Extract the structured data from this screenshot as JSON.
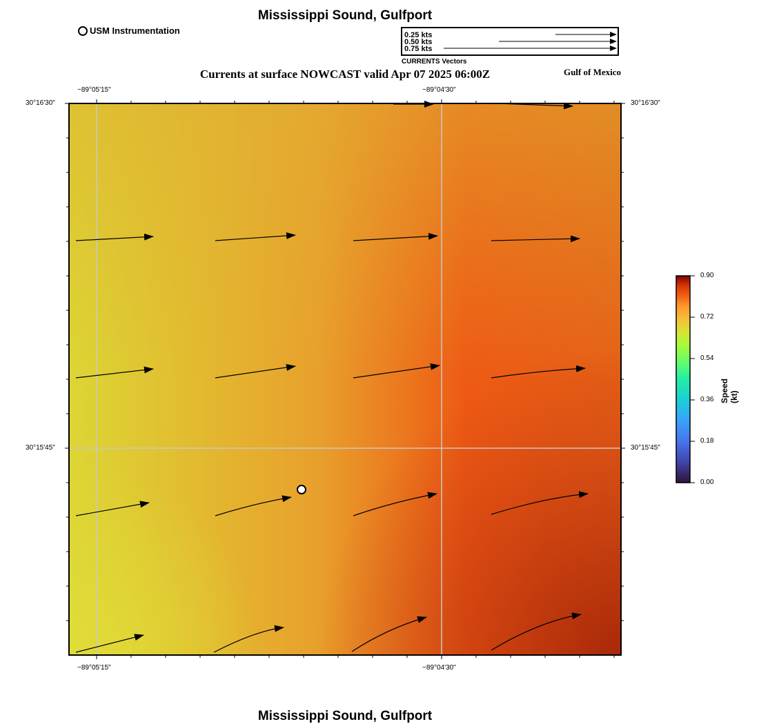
{
  "header": {
    "title": "Mississippi Sound, Gulfport",
    "subtitle": "Currents at surface NOWCAST valid Apr 07 2025 06:00Z",
    "region": "Gulf of Mexico"
  },
  "footer": {
    "title": "Mississippi Sound, Gulfport"
  },
  "legend": {
    "station_label": "USM Instrumentation",
    "vectors": [
      {
        "label": "0.25 kts",
        "speed_kt": 0.25
      },
      {
        "label": "0.50 kts",
        "speed_kt": 0.5
      },
      {
        "label": "0.75 kts",
        "speed_kt": 0.75
      }
    ],
    "vector_caption": "CURRENTS Vectors"
  },
  "axes": {
    "lon_ticks": [
      "−89°05'15\"",
      "−89°04'30\""
    ],
    "lat_ticks": [
      "30°16'30\"",
      "30°15'45\""
    ]
  },
  "colorbar": {
    "title": "Speed (kt)",
    "ticks": [
      "0.90",
      "0.72",
      "0.54",
      "0.36",
      "0.18",
      "0.00"
    ],
    "range": [
      0,
      0.9
    ]
  },
  "colors": {
    "west": "#dcd634",
    "mid": "#e8a02c",
    "east": "#ee5a14",
    "southeast": "#a82808",
    "gridline": "#c8c8c8"
  }
}
